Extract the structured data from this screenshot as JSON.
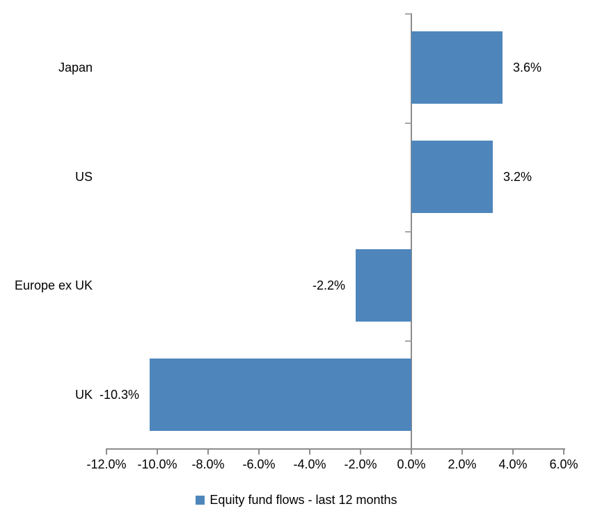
{
  "chart_data": {
    "type": "bar",
    "orientation": "horizontal",
    "title": "",
    "categories": [
      "Japan",
      "US",
      "Europe ex UK",
      "UK"
    ],
    "values": [
      3.6,
      3.2,
      -2.2,
      -10.3
    ],
    "data_labels": [
      "3.6%",
      "3.2%",
      "-2.2%",
      "-10.3%"
    ],
    "series_name": "Equity fund flows - last 12 months",
    "x_ticks": [
      "-12.0%",
      "-10.0%",
      "-8.0%",
      "-6.0%",
      "-4.0%",
      "-2.0%",
      "0.0%",
      "2.0%",
      "4.0%",
      "6.0%"
    ],
    "x_tick_values": [
      -12,
      -10,
      -8,
      -6,
      -4,
      -2,
      0,
      2,
      4,
      6
    ],
    "xlim": [
      -12,
      6
    ],
    "grid": false,
    "legend_position": "bottom",
    "bar_color": "#4E86BC",
    "axis_color": "#8C8C8C",
    "minor_tick_color": "#A6A6A6",
    "text_color": "#000000",
    "background_color": "#FFFFFF"
  }
}
